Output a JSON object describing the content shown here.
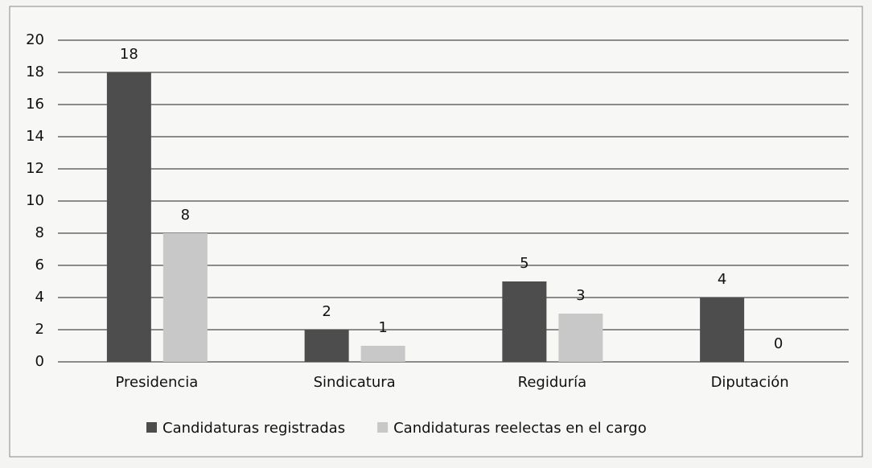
{
  "chart_data": {
    "type": "bar",
    "categories": [
      "Presidencia",
      "Sindicatura",
      "Regiduría",
      "Diputación"
    ],
    "series": [
      {
        "name": "Candidaturas registradas",
        "color": "#4d4d4d",
        "values": [
          18,
          2,
          5,
          4
        ]
      },
      {
        "name": "Candidaturas reelectas en el cargo",
        "color": "#c8c8c8",
        "values": [
          8,
          1,
          3,
          0
        ]
      }
    ],
    "ylim": [
      0,
      20
    ],
    "yticks": [
      0,
      2,
      4,
      6,
      8,
      10,
      12,
      14,
      16,
      18,
      20
    ],
    "grid": true,
    "legend": "bottom"
  }
}
